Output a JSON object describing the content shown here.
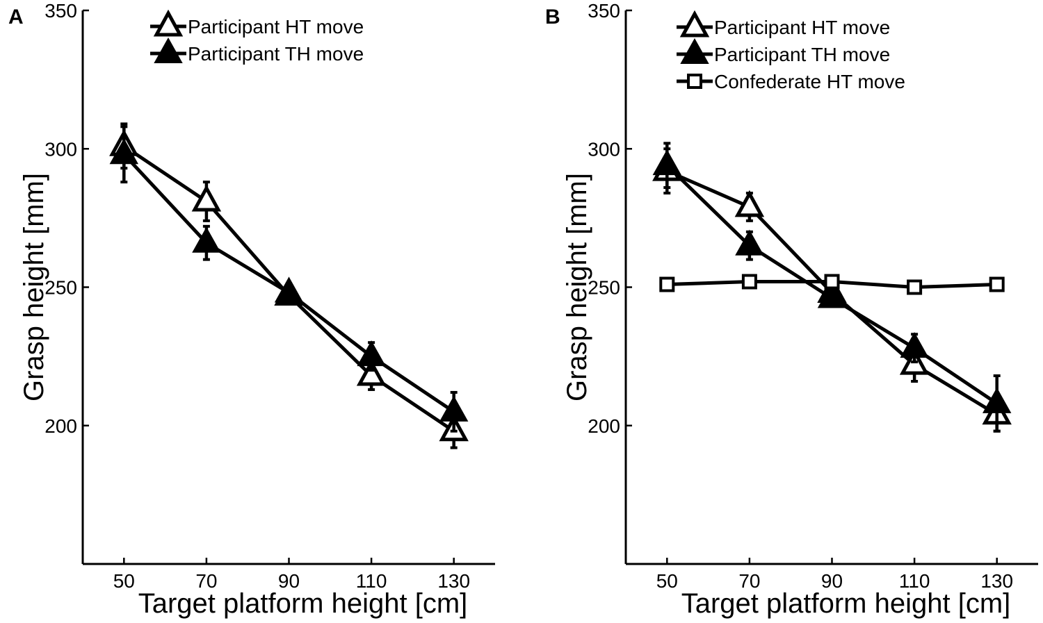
{
  "chart_data": [
    {
      "type": "line",
      "panel_label": "A",
      "xlabel": "Target platform height [cm]",
      "ylabel": "Grasp height [mm]",
      "x": [
        50,
        70,
        90,
        110,
        130
      ],
      "xlim": [
        40,
        140
      ],
      "ylim": [
        150,
        350
      ],
      "yticks": [
        200,
        250,
        300,
        350
      ],
      "xticks": [
        50,
        70,
        90,
        110,
        130
      ],
      "legend_position": "top-center",
      "series": [
        {
          "name": "Participant HT move",
          "marker": "open-triangle",
          "values": [
            301,
            281,
            247,
            218,
            198
          ],
          "errors": [
            8,
            7,
            3,
            5,
            6
          ]
        },
        {
          "name": "Participant TH move",
          "marker": "filled-triangle",
          "values": [
            298,
            266,
            248,
            225,
            205
          ],
          "errors": [
            10,
            6,
            3,
            5,
            7
          ]
        }
      ]
    },
    {
      "type": "line",
      "panel_label": "B",
      "xlabel": "Target platform height [cm]",
      "ylabel": "Grasp height [mm]",
      "x": [
        50,
        70,
        90,
        110,
        130
      ],
      "xlim": [
        40,
        140
      ],
      "ylim": [
        150,
        350
      ],
      "yticks": [
        200,
        250,
        300,
        350
      ],
      "xticks": [
        50,
        70,
        90,
        110,
        130
      ],
      "legend_position": "top-center",
      "series": [
        {
          "name": "Participant HT move",
          "marker": "open-triangle",
          "values": [
            292,
            279,
            248,
            222,
            204
          ],
          "errors": [
            8,
            5,
            4,
            6,
            6
          ]
        },
        {
          "name": "Participant TH move",
          "marker": "filled-triangle",
          "values": [
            294,
            265,
            246,
            228,
            208
          ],
          "errors": [
            8,
            5,
            3,
            5,
            10
          ]
        },
        {
          "name": "Confederate HT move",
          "marker": "open-square",
          "values": [
            251,
            252,
            252,
            250,
            251
          ],
          "errors": [
            0,
            0,
            0,
            0,
            0
          ]
        }
      ]
    }
  ]
}
